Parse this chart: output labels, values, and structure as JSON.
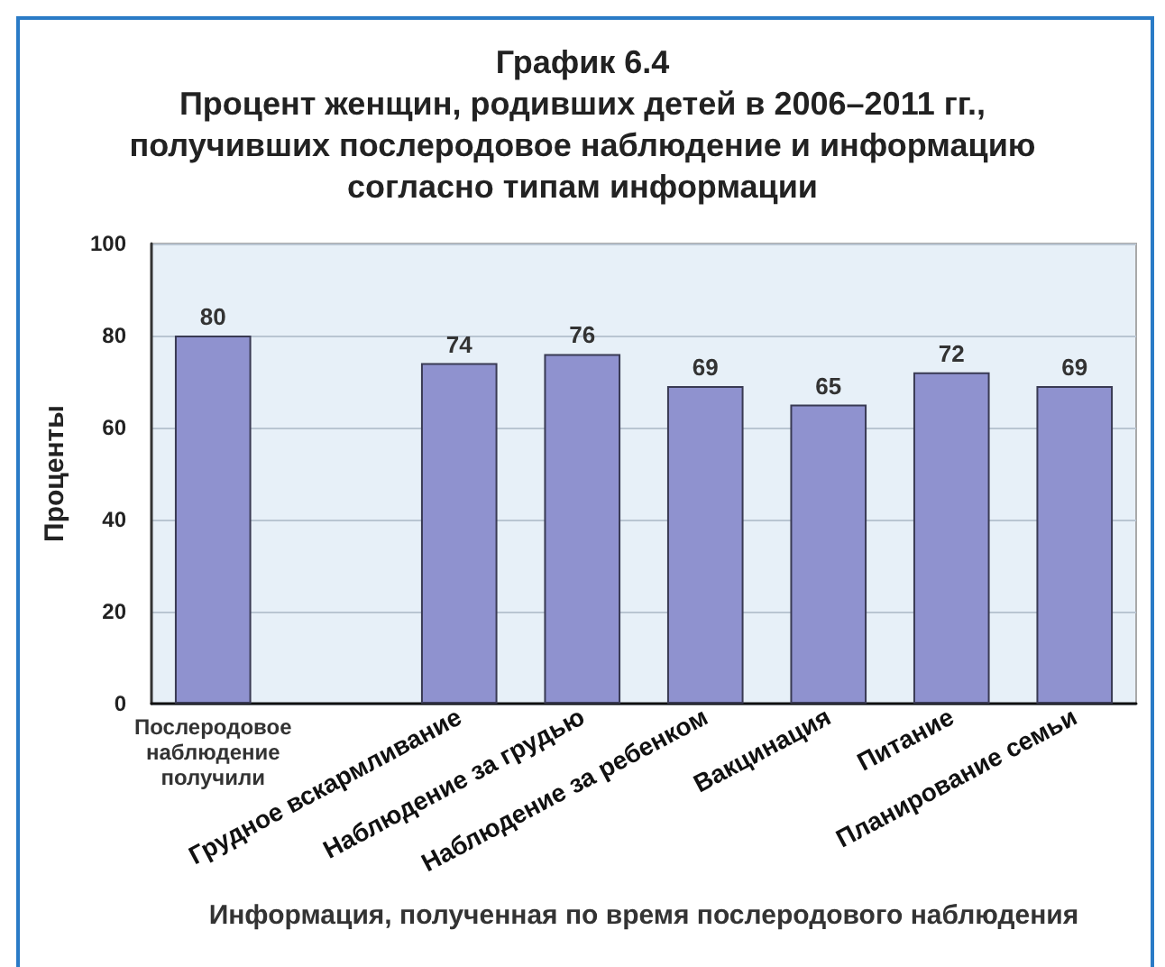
{
  "chart_data": {
    "type": "bar",
    "title": "График 6.4",
    "subtitle": "Процент женщин, родивших детей в 2006–2011 гг., получивших послеродовое наблюдение и информацию согласно типам информации",
    "xlabel": "Информация, полученная по время послеродового наблюдения",
    "ylabel": "Проценты",
    "categories": [
      "Послеродовое наблюдение получили",
      null,
      "Грудное вскармливание",
      "Наблюдение за грудью",
      "Наблюдение за ребенком",
      "Вакцинация",
      "Питание",
      "Планирование семьи"
    ],
    "values": [
      80,
      null,
      74,
      76,
      69,
      65,
      72,
      69
    ],
    "color": "#8f92cf",
    "ylim": [
      0,
      100
    ],
    "yticks": [
      0,
      20,
      40,
      60,
      80,
      100
    ],
    "grid": "y",
    "data_labels": true
  }
}
